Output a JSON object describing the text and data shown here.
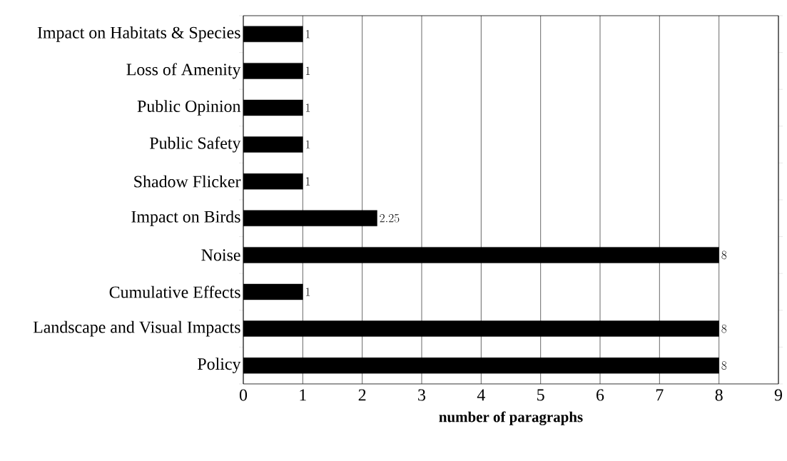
{
  "chart_data": {
    "type": "bar",
    "orientation": "horizontal",
    "xlabel": "number of paragraphs",
    "categories": [
      "Impact on Habitats & Species",
      "Loss of Amenity",
      "Public Opinion",
      "Public Safety",
      "Shadow Flicker",
      "Impact on Birds",
      "Noise",
      "Cumulative Effects",
      "Landscape and Visual Impacts",
      "Policy"
    ],
    "values": [
      1,
      1,
      1,
      1,
      1,
      2.25,
      8,
      1,
      8,
      8
    ],
    "color": "#000000",
    "xlim": [
      0,
      9
    ],
    "xticks": [
      0,
      1,
      2,
      3,
      4,
      5,
      6,
      7,
      8,
      9
    ],
    "grid": "x",
    "data_labels": true
  }
}
